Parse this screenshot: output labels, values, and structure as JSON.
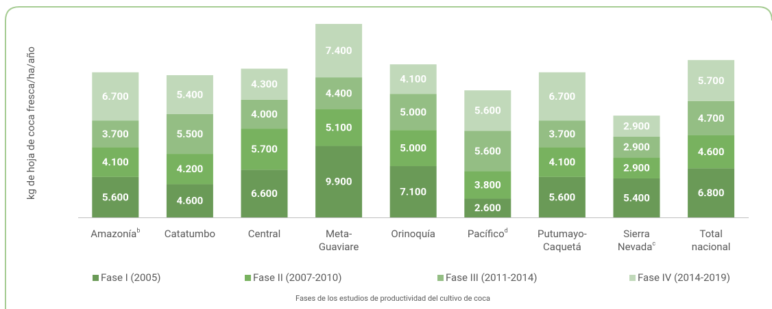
{
  "chart_data": {
    "type": "stacked_bar",
    "y_label": "kg de hoja de coca fresca/ha/año",
    "x_label": "Fases de los estudios de productividad del cultivo de coca",
    "categories": [
      {
        "lines": [
          "Amazonía"
        ],
        "note": "b"
      },
      {
        "lines": [
          "Catatumbo"
        ]
      },
      {
        "lines": [
          "Central"
        ]
      },
      {
        "lines": [
          "Meta-",
          "Guaviare"
        ]
      },
      {
        "lines": [
          "Orinoquía"
        ]
      },
      {
        "lines": [
          "Pacífico"
        ],
        "note": "d"
      },
      {
        "lines": [
          "Putumayo-",
          "Caquetá"
        ]
      },
      {
        "lines": [
          "Sierra",
          "Nevada"
        ],
        "note": "c"
      },
      {
        "lines": [
          "Total",
          "nacional"
        ]
      }
    ],
    "series": [
      {
        "name": "Fase I (2005)",
        "color": "#6a9a57",
        "values": [
          5600,
          4600,
          6600,
          9900,
          7100,
          2600,
          5600,
          5400,
          6800
        ],
        "value_labels": [
          "5.600",
          "4.600",
          "6.600",
          "9.900",
          "7.100",
          "2.600",
          "5.600",
          "5.400",
          "6.800"
        ]
      },
      {
        "name": "Fase II (2007-2010)",
        "color": "#78b25f",
        "values": [
          4100,
          4200,
          5700,
          5100,
          5000,
          3800,
          4100,
          2900,
          4600
        ],
        "value_labels": [
          "4.100",
          "4.200",
          "5.700",
          "5.100",
          "5.000",
          "3.800",
          "4.100",
          "2.900",
          "4.600"
        ]
      },
      {
        "name": "Fase III (2011-2014)",
        "color": "#94be84",
        "values": [
          3700,
          5500,
          4000,
          4400,
          5000,
          5600,
          3700,
          2900,
          4700
        ],
        "value_labels": [
          "3.700",
          "5.500",
          "4.000",
          "4.400",
          "5.000",
          "5.600",
          "3.700",
          "2.900",
          "4.700"
        ]
      },
      {
        "name": "Fase IV (2014-2019)",
        "color": "#c1d9ba",
        "values": [
          6700,
          5400,
          4300,
          7400,
          4100,
          5600,
          6700,
          2900,
          5700
        ],
        "value_labels": [
          "6.700",
          "5.400",
          "4.300",
          "7.400",
          "4.100",
          "5.600",
          "6.700",
          "2.900",
          "5.700"
        ]
      }
    ]
  }
}
